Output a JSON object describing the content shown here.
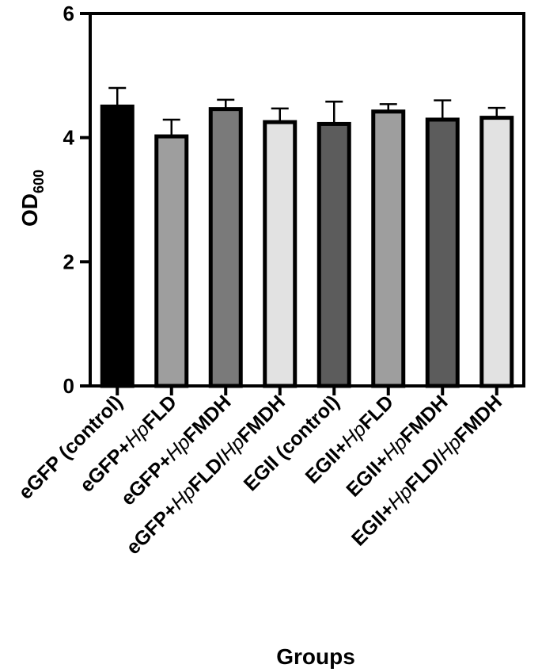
{
  "chart_data": {
    "type": "bar",
    "xlabel": "Groups",
    "ylabel": {
      "main": "OD",
      "subscript": "600"
    },
    "ylim": [
      0,
      6
    ],
    "yticks": [
      0,
      2,
      4,
      6
    ],
    "categories": [
      [
        {
          "t": "eGFP (control)",
          "i": false
        }
      ],
      [
        {
          "t": "eGFP+",
          "i": false
        },
        {
          "t": "Hp",
          "i": true
        },
        {
          "t": "FLD",
          "i": false
        }
      ],
      [
        {
          "t": "eGFP+",
          "i": false
        },
        {
          "t": "Hp",
          "i": true
        },
        {
          "t": "FMDH",
          "i": false
        }
      ],
      [
        {
          "t": "eGFP+",
          "i": false
        },
        {
          "t": "Hp",
          "i": true
        },
        {
          "t": "FLD/",
          "i": false
        },
        {
          "t": "Hp",
          "i": true
        },
        {
          "t": "FMDH",
          "i": false
        }
      ],
      [
        {
          "t": "EGII (control)",
          "i": false
        }
      ],
      [
        {
          "t": "EGII+",
          "i": false
        },
        {
          "t": "Hp",
          "i": true
        },
        {
          "t": "FLD",
          "i": false
        }
      ],
      [
        {
          "t": "EGII+",
          "i": false
        },
        {
          "t": "Hp",
          "i": true
        },
        {
          "t": "FMDH",
          "i": false
        }
      ],
      [
        {
          "t": "EGII+",
          "i": false
        },
        {
          "t": "Hp",
          "i": true
        },
        {
          "t": "FLD/",
          "i": false
        },
        {
          "t": "Hp",
          "i": true
        },
        {
          "t": "FMDH",
          "i": false
        }
      ]
    ],
    "values": [
      4.5,
      4.02,
      4.46,
      4.25,
      4.22,
      4.42,
      4.29,
      4.32
    ],
    "errors": [
      0.3,
      0.27,
      0.15,
      0.22,
      0.36,
      0.12,
      0.31,
      0.16
    ],
    "colors": [
      "#000000",
      "#9e9e9e",
      "#7a7a7a",
      "#e2e2e2",
      "#5c5c5c",
      "#9e9e9e",
      "#5c5c5c",
      "#e2e2e2"
    ],
    "grid": false,
    "legend": "none"
  }
}
